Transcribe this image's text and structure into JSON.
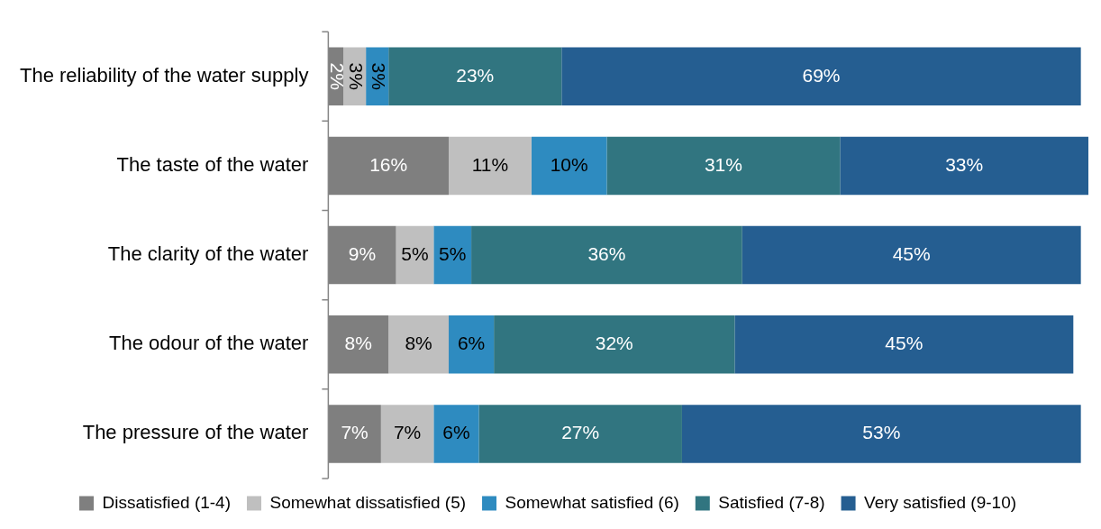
{
  "chart_data": {
    "type": "bar",
    "orientation": "horizontal",
    "stacked": true,
    "legend": "bottom",
    "categories": [
      "The reliability of the water supply",
      "The taste of the water",
      "The clarity of the water",
      "The odour of the water",
      "The pressure of the water"
    ],
    "series": [
      {
        "name": "Dissatisfied (1-4)",
        "color": "#7f7f7f",
        "values": [
          2,
          16,
          9,
          8,
          7
        ],
        "value_labels": [
          "2%",
          "16%",
          "9%",
          "8%",
          "7%"
        ]
      },
      {
        "name": "Somewhat dissatisfied (5)",
        "color": "#bfbfbf",
        "values": [
          3,
          11,
          5,
          8,
          7
        ],
        "value_labels": [
          "3%",
          "11%",
          "5%",
          "8%",
          "7%"
        ]
      },
      {
        "name": "Somewhat satisfied (6)",
        "color": "#2e8bc0",
        "values": [
          3,
          10,
          5,
          6,
          6
        ],
        "value_labels": [
          "3%",
          "10%",
          "5%",
          "6%",
          "6%"
        ]
      },
      {
        "name": "Satisfied (7-8)",
        "color": "#317580",
        "values": [
          23,
          31,
          36,
          32,
          27
        ],
        "value_labels": [
          "23%",
          "31%",
          "36%",
          "32%",
          "27%"
        ]
      },
      {
        "name": "Very satisfied (9-10)",
        "color": "#255e91",
        "values": [
          69,
          33,
          45,
          45,
          53
        ],
        "value_labels": [
          "69%",
          "33%",
          "45%",
          "45%",
          "53%"
        ]
      }
    ]
  }
}
